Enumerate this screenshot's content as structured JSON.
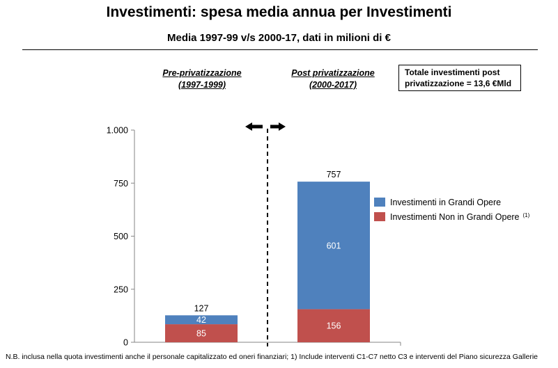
{
  "header": {
    "title": "Investimenti: spesa media annua per Investimenti",
    "subtitle": "Media 1997-99 v/s 2000-17, dati in milioni di €"
  },
  "periods": {
    "pre_line1": "Pre-privatizzazione",
    "pre_line2": "(1997-1999)",
    "post_line1": "Post privatizzazione",
    "post_line2": "(2000-2017)"
  },
  "total_box": {
    "line1": "Totale investimenti post",
    "line2": "privatizzazione = 13,6 €Mld"
  },
  "footnote": "N.B. inclusa nella quota investimenti anche il personale capitalizzato ed oneri finanziari; 1) Include interventi C1-C7 netto C3 e interventi del Piano sicurezza Gallerie",
  "colors": {
    "grandi_opere": "#4F81BD",
    "non_grandi_opere": "#C0504D"
  },
  "chart_data": {
    "type": "bar",
    "stacked": true,
    "categories": [
      "Pre-privatizzazione (1997-1999)",
      "Post privatizzazione (2000-2017)"
    ],
    "series": [
      {
        "name": "Investimenti Non in Grandi Opere",
        "values": [
          85,
          156
        ],
        "color": "#C0504D"
      },
      {
        "name": "Investimenti in Grandi Opere",
        "values": [
          42,
          601
        ],
        "color": "#4F81BD"
      }
    ],
    "totals": [
      127,
      757
    ],
    "ylim": [
      0,
      1000
    ],
    "yticks": [
      0,
      250,
      500,
      750,
      1000
    ],
    "ytick_labels": [
      "0",
      "250",
      "500",
      "750",
      "1.000"
    ],
    "legend": [
      {
        "label": "Investimenti in Grandi Opere",
        "sup": ""
      },
      {
        "label": "Investimenti Non in Grandi Opere",
        "sup": "(1)"
      }
    ],
    "legend_position": "right",
    "grid": false,
    "divider": "dashed vertical line with arrows pointing left and right"
  }
}
